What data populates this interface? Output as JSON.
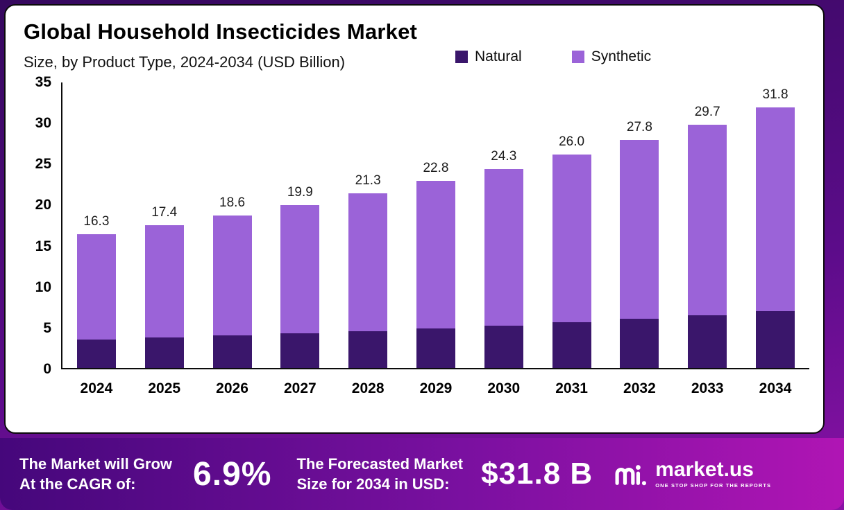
{
  "header": {
    "title": "Global Household Insecticides Market",
    "subtitle": "Size, by Product Type, 2024-2034 (USD Billion)"
  },
  "legend": [
    {
      "label": "Natural",
      "color": "#3a166b"
    },
    {
      "label": "Synthetic",
      "color": "#9b63d8"
    }
  ],
  "chart_data": {
    "type": "bar",
    "stacked": true,
    "title": "Global Household Insecticides Market Size, by Product Type, 2024-2034 (USD Billion)",
    "categories": [
      "2024",
      "2025",
      "2026",
      "2027",
      "2028",
      "2029",
      "2030",
      "2031",
      "2032",
      "2033",
      "2034"
    ],
    "series": [
      {
        "name": "Natural",
        "color": "#3a166b",
        "values": [
          3.5,
          3.7,
          4.0,
          4.2,
          4.5,
          4.8,
          5.2,
          5.6,
          6.0,
          6.4,
          6.9
        ]
      },
      {
        "name": "Synthetic",
        "color": "#9b63d8",
        "values": [
          12.8,
          13.7,
          14.6,
          15.7,
          16.8,
          18.0,
          19.1,
          20.4,
          21.8,
          23.3,
          24.9
        ]
      }
    ],
    "totals": [
      16.3,
      17.4,
      18.6,
      19.9,
      21.3,
      22.8,
      24.3,
      26.0,
      27.8,
      29.7,
      31.8
    ],
    "total_labels": [
      "16.3",
      "17.4",
      "18.6",
      "19.9",
      "21.3",
      "22.8",
      "24.3",
      "26.0",
      "27.8",
      "29.7",
      "31.8"
    ],
    "xlabel": "",
    "ylabel": "",
    "ylim": [
      0,
      35
    ],
    "yticks": [
      0,
      5,
      10,
      15,
      20,
      25,
      30,
      35
    ],
    "grid": false,
    "legend_position": "top-right"
  },
  "footer": {
    "cagr_line1": "The Market will Grow",
    "cagr_line2": "At the CAGR of:",
    "cagr_value": "6.9%",
    "forecast_line1": "The Forecasted Market",
    "forecast_line2": "Size for 2034 in USD:",
    "forecast_value": "$31.8 B",
    "brand": "market.us",
    "brand_tagline": "ONE STOP SHOP FOR THE REPORTS"
  }
}
